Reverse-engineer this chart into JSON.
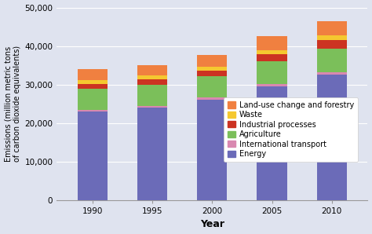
{
  "years": [
    "1990",
    "1995",
    "2000",
    "2005",
    "2010"
  ],
  "categories": [
    "Energy",
    "International transport",
    "Agriculture",
    "Industrial processes",
    "Waste",
    "Land-use change and forestry"
  ],
  "colors": [
    "#6b6bb8",
    "#d988b0",
    "#7bbf5a",
    "#cc3322",
    "#f5c830",
    "#f08040"
  ],
  "values": {
    "Energy": [
      23000,
      24000,
      26000,
      29500,
      32500
    ],
    "International transport": [
      500,
      500,
      600,
      600,
      700
    ],
    "Agriculture": [
      5500,
      5500,
      5500,
      6000,
      6200
    ],
    "Industrial processes": [
      1200,
      1300,
      1500,
      1700,
      2100
    ],
    "Waste": [
      900,
      1100,
      1100,
      1200,
      1300
    ],
    "Land-use change and forestry": [
      3000,
      2700,
      2900,
      3500,
      3700
    ]
  },
  "ylabel": "Emissions (million metric tons\nof carbon dioxide equivalents)",
  "xlabel": "Year",
  "ylim": [
    0,
    50000
  ],
  "yticks": [
    0,
    10000,
    20000,
    30000,
    40000,
    50000
  ],
  "ytick_labels": [
    "0",
    "10,000",
    "20,000",
    "30,000",
    "40,000",
    "50,000"
  ],
  "background_color": "#dfe3ef",
  "bar_width": 0.5,
  "axis_fontsize": 7.5,
  "legend_fontsize": 7
}
